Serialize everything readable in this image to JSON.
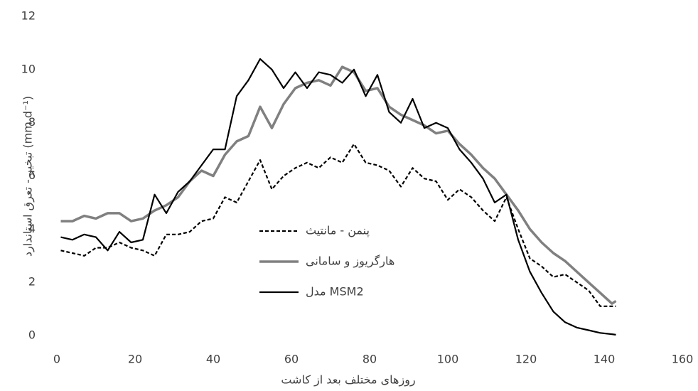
{
  "chart_data": {
    "type": "line",
    "y_label": "تبخیر - تعرق استاندارد (mm d⁻¹)",
    "x_label": "روزهای مختلف بعد از کاشت",
    "x": [
      1,
      4,
      7,
      10,
      13,
      16,
      19,
      22,
      25,
      28,
      31,
      34,
      37,
      40,
      43,
      46,
      49,
      52,
      55,
      58,
      61,
      64,
      67,
      70,
      73,
      76,
      79,
      82,
      85,
      88,
      91,
      94,
      97,
      100,
      103,
      106,
      109,
      112,
      115,
      118,
      121,
      124,
      127,
      130,
      133,
      136,
      139,
      142,
      143
    ],
    "series": [
      {
        "name": "پنمن - مانتیث",
        "color": "#000000",
        "line_style": "dashed",
        "values": [
          3.2,
          3.1,
          3.0,
          3.3,
          3.3,
          3.5,
          3.3,
          3.2,
          3.0,
          3.8,
          3.8,
          3.9,
          4.3,
          4.4,
          5.2,
          5.0,
          5.8,
          6.6,
          5.5,
          6.0,
          6.3,
          6.5,
          6.3,
          6.7,
          6.5,
          7.2,
          6.5,
          6.4,
          6.2,
          5.6,
          6.3,
          5.9,
          5.8,
          5.1,
          5.5,
          5.2,
          4.7,
          4.3,
          5.2,
          4.0,
          2.9,
          2.6,
          2.2,
          2.3,
          2.0,
          1.7,
          1.1,
          1.1,
          1.1
        ]
      },
      {
        "name": "هارگریوز و سامانی",
        "color": "#808080",
        "line_style": "solid",
        "values": [
          4.3,
          4.3,
          4.5,
          4.4,
          4.6,
          4.6,
          4.3,
          4.4,
          4.7,
          4.9,
          5.2,
          5.8,
          6.2,
          6.0,
          6.8,
          7.3,
          7.5,
          8.6,
          7.8,
          8.7,
          9.3,
          9.5,
          9.6,
          9.4,
          10.1,
          9.9,
          9.2,
          9.3,
          8.6,
          8.3,
          8.1,
          7.9,
          7.6,
          7.7,
          7.2,
          6.8,
          6.3,
          5.9,
          5.3,
          4.7,
          4.0,
          3.5,
          3.1,
          2.8,
          2.4,
          2.0,
          1.6,
          1.2,
          1.3
        ]
      },
      {
        "name": "مدل MSM2",
        "color": "#000000",
        "line_style": "solid",
        "values": [
          3.7,
          3.6,
          3.8,
          3.7,
          3.2,
          3.9,
          3.5,
          3.6,
          5.3,
          4.6,
          5.4,
          5.8,
          6.4,
          7.0,
          7.0,
          9.0,
          9.6,
          10.4,
          10.0,
          9.3,
          9.9,
          9.3,
          9.9,
          9.8,
          9.5,
          10.0,
          9.0,
          9.8,
          8.4,
          8.0,
          8.9,
          7.8,
          8.0,
          7.8,
          7.0,
          6.5,
          5.9,
          5.0,
          5.3,
          3.6,
          2.4,
          1.6,
          0.9,
          0.5,
          0.3,
          0.2,
          0.1,
          0.05,
          0.03
        ]
      }
    ],
    "xlim": [
      0,
      160
    ],
    "xticks": [
      0,
      20,
      40,
      60,
      80,
      100,
      120,
      140,
      160
    ],
    "ylim": [
      0,
      12
    ],
    "yticks": [
      0,
      2,
      4,
      6,
      8,
      10,
      12
    ],
    "grid": false
  }
}
